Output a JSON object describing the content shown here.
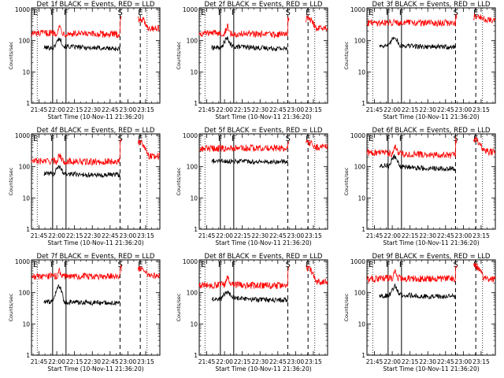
{
  "shared": {
    "xlabel": "Start Time (10-Nov-11 21:36:20)",
    "ylabel": "Counts/sec",
    "x_ticks": [
      "21:45",
      "22:00",
      "22:15",
      "22:30",
      "22:45",
      "23:00",
      "23:15"
    ],
    "y_ticks": [
      "1",
      "10",
      "100",
      "1000"
    ],
    "xlim_minutes": [
      -6.33,
      102
    ],
    "ylim_log10": [
      0,
      3.05
    ],
    "series_colors": {
      "events": "#000000",
      "lld": "#ff0000"
    },
    "markers": [
      {
        "label": "F",
        "style": "solid",
        "minutes": 11.5
      },
      {
        "label": "F",
        "style": "solid",
        "minutes": 22.8
      },
      {
        "label": "S",
        "style": "dashed",
        "minutes": 68.4
      },
      {
        "label": "E",
        "style": "dashed",
        "minutes": 85.5
      }
    ],
    "dotted_minutes": [
      -1.5,
      91.2
    ]
  },
  "chart_data": [
    {
      "type": "line",
      "title": "Det 1f BLACK = Events, RED = LLD",
      "corner_label": "E",
      "series": [
        {
          "name": "Events",
          "values": [
            60,
            60,
            58,
            120,
            65,
            60,
            55,
            65
          ]
        },
        {
          "name": "LLD",
          "values": [
            170,
            170,
            180,
            280,
            170,
            160,
            160,
            500,
            250
          ]
        }
      ]
    },
    {
      "type": "line",
      "title": "Det 2f BLACK = Events, RED = LLD",
      "corner_label": "E",
      "series": [
        {
          "name": "Events",
          "values": [
            60,
            60,
            58,
            120,
            65,
            60,
            55,
            65
          ]
        },
        {
          "name": "LLD",
          "values": [
            170,
            170,
            180,
            280,
            170,
            160,
            160,
            500,
            250
          ]
        }
      ]
    },
    {
      "type": "line",
      "title": "Det 3f BLACK = Events, RED = LLD",
      "corner_label": "E",
      "series": [
        {
          "name": "Events",
          "values": [
            70,
            70,
            68,
            140,
            70,
            65,
            62,
            70
          ]
        },
        {
          "name": "LLD",
          "values": [
            380,
            380,
            380,
            450,
            380,
            370,
            370,
            600,
            480
          ]
        }
      ]
    },
    {
      "type": "line",
      "title": "Det 4f BLACK = Events, RED = LLD",
      "corner_label": "E",
      "series": [
        {
          "name": "Events",
          "values": [
            60,
            60,
            58,
            100,
            60,
            55,
            55,
            60
          ]
        },
        {
          "name": "LLD",
          "values": [
            150,
            150,
            150,
            240,
            150,
            140,
            150,
            600,
            220
          ]
        }
      ]
    },
    {
      "type": "line",
      "title": "Det 5f BLACK = Events, RED = LLD",
      "corner_label": "",
      "series": [
        {
          "name": "Events",
          "values": [
            150,
            150,
            150,
            150,
            150,
            145,
            145,
            145
          ]
        },
        {
          "name": "LLD",
          "values": [
            380,
            380,
            390,
            420,
            400,
            390,
            390,
            600,
            420
          ]
        }
      ]
    },
    {
      "type": "line",
      "title": "Det 6f BLACK = Events, RED = LLD",
      "corner_label": "E",
      "series": [
        {
          "name": "Events",
          "values": [
            110,
            110,
            105,
            220,
            100,
            90,
            85,
            90
          ]
        },
        {
          "name": "LLD",
          "values": [
            280,
            280,
            270,
            500,
            260,
            240,
            230,
            700,
            300
          ]
        }
      ]
    },
    {
      "type": "line",
      "title": "Det 7f BLACK = Events, RED = LLD",
      "corner_label": "E",
      "series": [
        {
          "name": "Events",
          "values": [
            50,
            50,
            55,
            170,
            50,
            48,
            47,
            50
          ]
        },
        {
          "name": "LLD",
          "values": [
            330,
            330,
            340,
            500,
            330,
            330,
            330,
            600,
            350
          ]
        }
      ]
    },
    {
      "type": "line",
      "title": "Det 8f BLACK = Events, RED = LLD",
      "corner_label": "E",
      "series": [
        {
          "name": "Events",
          "values": [
            65,
            65,
            65,
            110,
            70,
            60,
            58,
            65
          ]
        },
        {
          "name": "LLD",
          "values": [
            170,
            170,
            180,
            300,
            180,
            170,
            170,
            600,
            220
          ]
        }
      ]
    },
    {
      "type": "line",
      "title": "Det 9f BLACK = Events, RED = LLD",
      "corner_label": "E",
      "series": [
        {
          "name": "Events",
          "values": [
            80,
            80,
            80,
            160,
            85,
            75,
            75,
            80
          ]
        },
        {
          "name": "LLD",
          "values": [
            280,
            280,
            290,
            450,
            290,
            280,
            280,
            700,
            280
          ]
        }
      ]
    }
  ]
}
